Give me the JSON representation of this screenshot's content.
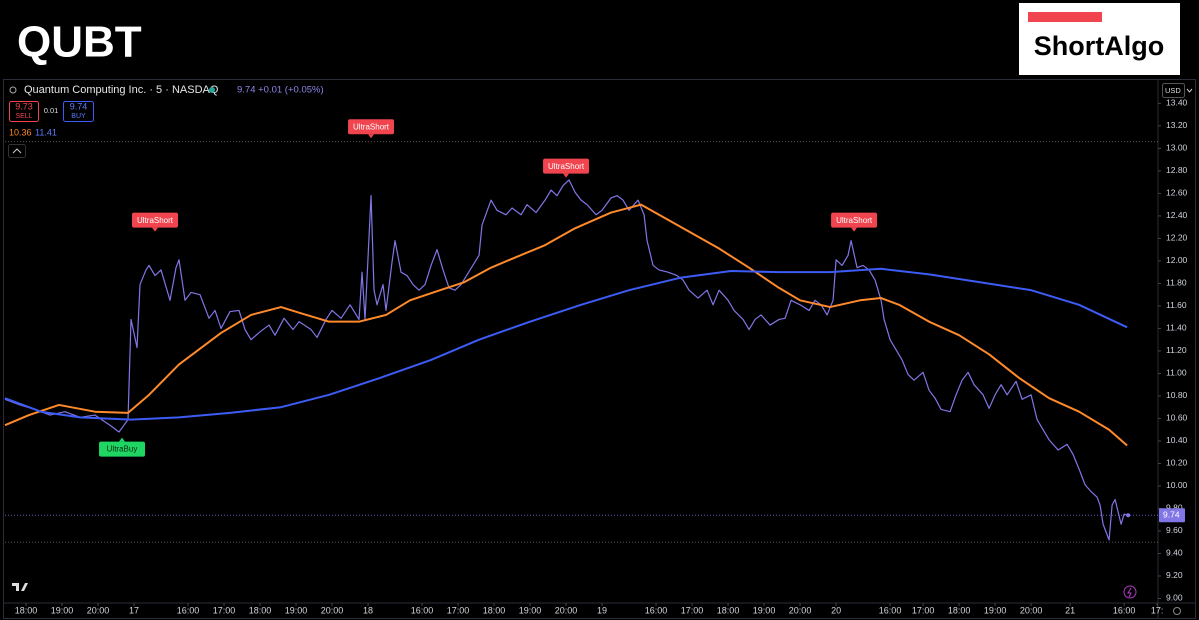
{
  "chart_data": {
    "type": "line",
    "title": "QUBT",
    "brand": "ShortAlgo",
    "symbol": "Quantum Computing Inc. · 5 · NASDAQ",
    "quote": "9.74 +0.01 (+0.05%)",
    "sell": {
      "price": 9.73,
      "label": "SELL"
    },
    "spread": 0.01,
    "buy": {
      "price": 9.74,
      "label": "BUY"
    },
    "ma_values": [
      10.36,
      11.41
    ],
    "currency": "USD",
    "last_price": 9.74,
    "price_lines": [
      13.06,
      9.5
    ],
    "xlim": [
      -7,
      377.3
    ],
    "ylim": [
      8.96,
      13.59
    ],
    "grid": false,
    "xticks": [
      {
        "value": 0,
        "label": "18:00"
      },
      {
        "value": 12,
        "label": "19:00"
      },
      {
        "value": 24,
        "label": "20:00"
      },
      {
        "value": 36,
        "label": "17"
      },
      {
        "value": 54,
        "label": "16:00"
      },
      {
        "value": 66,
        "label": "17:00"
      },
      {
        "value": 78,
        "label": "18:00"
      },
      {
        "value": 90,
        "label": "19:00"
      },
      {
        "value": 102,
        "label": "20:00"
      },
      {
        "value": 114,
        "label": "18"
      },
      {
        "value": 132,
        "label": "16:00"
      },
      {
        "value": 144,
        "label": "17:00"
      },
      {
        "value": 156,
        "label": "18:00"
      },
      {
        "value": 168,
        "label": "19:00"
      },
      {
        "value": 180,
        "label": "20:00"
      },
      {
        "value": 192,
        "label": "19"
      },
      {
        "value": 210,
        "label": "16:00"
      },
      {
        "value": 222,
        "label": "17:00"
      },
      {
        "value": 234,
        "label": "18:00"
      },
      {
        "value": 246,
        "label": "19:00"
      },
      {
        "value": 258,
        "label": "20:00"
      },
      {
        "value": 270,
        "label": "20"
      },
      {
        "value": 288,
        "label": "16:00"
      },
      {
        "value": 299,
        "label": "17:00"
      },
      {
        "value": 311,
        "label": "18:00"
      },
      {
        "value": 323,
        "label": "19:00"
      },
      {
        "value": 335,
        "label": "20:00"
      },
      {
        "value": 348,
        "label": "21"
      },
      {
        "value": 366,
        "label": "16:00"
      },
      {
        "value": 377,
        "label": "17:"
      }
    ],
    "yticks": [
      {
        "value": 9,
        "label": "9.00"
      },
      {
        "value": 9.2,
        "label": "9.20"
      },
      {
        "value": 9.4,
        "label": "9.40"
      },
      {
        "value": 9.6,
        "label": "9.60"
      },
      {
        "value": 9.8,
        "label": "9.80"
      },
      {
        "value": 10,
        "label": "10.00"
      },
      {
        "value": 10.2,
        "label": "10.20"
      },
      {
        "value": 10.4,
        "label": "10.40"
      },
      {
        "value": 10.6,
        "label": "10.60"
      },
      {
        "value": 10.8,
        "label": "10.80"
      },
      {
        "value": 11,
        "label": "11.00"
      },
      {
        "value": 11.2,
        "label": "11.20"
      },
      {
        "value": 11.4,
        "label": "11.40"
      },
      {
        "value": 11.6,
        "label": "11.60"
      },
      {
        "value": 11.8,
        "label": "11.80"
      },
      {
        "value": 12,
        "label": "12.00"
      },
      {
        "value": 12.2,
        "label": "12.20"
      },
      {
        "value": 12.4,
        "label": "12.40"
      },
      {
        "value": 12.6,
        "label": "12.60"
      },
      {
        "value": 12.8,
        "label": "12.80"
      },
      {
        "value": 13,
        "label": "13.00"
      },
      {
        "value": 13.2,
        "label": "13.20"
      },
      {
        "value": 13.4,
        "label": "13.40"
      }
    ],
    "series": [
      {
        "color": "#8176e6",
        "x": [
          -7,
          -2,
          3,
          8,
          13,
          18,
          23,
          28,
          31,
          34,
          35,
          37,
          38,
          40,
          41,
          43,
          45,
          46,
          48,
          50,
          51,
          53,
          55,
          58,
          61,
          63,
          65,
          68,
          71,
          73,
          75,
          78,
          81,
          83,
          86,
          89,
          91,
          95,
          97,
          100,
          102,
          105,
          108,
          111,
          112,
          113,
          115,
          116,
          117,
          119,
          120,
          122,
          123,
          125,
          127,
          129,
          131,
          133,
          135,
          137,
          139,
          141,
          143,
          145,
          148,
          151,
          152,
          155,
          157,
          160,
          162,
          165,
          167,
          170,
          173,
          175,
          177,
          179,
          181,
          183,
          185,
          187,
          190,
          192,
          195,
          197,
          199,
          201,
          204,
          206,
          207,
          209,
          211,
          214,
          217,
          219,
          221,
          224,
          227,
          229,
          231,
          234,
          236,
          239,
          241,
          243,
          245,
          248,
          251,
          253,
          255,
          258,
          261,
          263,
          265,
          267,
          269,
          270,
          272,
          274,
          275,
          277,
          279,
          281,
          283,
          285,
          286,
          288,
          290,
          292,
          294,
          296,
          299,
          301,
          303,
          305,
          308,
          310,
          312,
          314,
          316,
          319,
          321,
          323,
          325,
          327,
          330,
          332,
          335,
          337,
          339,
          341,
          344,
          347,
          349,
          351,
          353,
          355,
          357,
          358,
          359,
          361,
          362,
          363,
          365,
          366,
          367
        ],
        "values": [
          10.77,
          10.72,
          10.68,
          10.63,
          10.66,
          10.61,
          10.63,
          10.54,
          10.48,
          10.59,
          11.48,
          11.23,
          11.79,
          11.92,
          11.96,
          11.87,
          11.92,
          11.83,
          11.65,
          11.94,
          12.01,
          11.65,
          11.72,
          11.7,
          11.49,
          11.56,
          11.4,
          11.55,
          11.56,
          11.39,
          11.3,
          11.37,
          11.43,
          11.34,
          11.49,
          11.39,
          11.46,
          11.39,
          11.32,
          11.48,
          11.56,
          11.49,
          11.61,
          11.48,
          11.9,
          11.48,
          12.58,
          11.74,
          11.61,
          11.79,
          11.56,
          11.99,
          12.18,
          11.9,
          11.87,
          11.79,
          11.74,
          11.79,
          11.96,
          12.1,
          11.92,
          11.76,
          11.74,
          11.79,
          11.92,
          12.05,
          12.32,
          12.54,
          12.45,
          12.41,
          12.47,
          12.41,
          12.5,
          12.43,
          12.54,
          12.63,
          12.58,
          12.67,
          12.72,
          12.61,
          12.54,
          12.5,
          12.41,
          12.45,
          12.56,
          12.58,
          12.54,
          12.45,
          12.54,
          12.41,
          12.18,
          11.96,
          11.92,
          11.9,
          11.87,
          11.83,
          11.74,
          11.67,
          11.74,
          11.61,
          11.74,
          11.65,
          11.56,
          11.48,
          11.39,
          11.48,
          11.52,
          11.43,
          11.48,
          11.49,
          11.65,
          11.61,
          11.56,
          11.65,
          11.61,
          11.52,
          11.65,
          12.01,
          11.96,
          12.05,
          12.18,
          11.94,
          11.96,
          11.92,
          11.83,
          11.65,
          11.48,
          11.3,
          11.21,
          11.12,
          10.99,
          10.94,
          11.01,
          10.85,
          10.78,
          10.68,
          10.66,
          10.81,
          10.94,
          11.01,
          10.9,
          10.81,
          10.69,
          10.81,
          10.9,
          10.81,
          10.93,
          10.77,
          10.81,
          10.59,
          10.5,
          10.41,
          10.32,
          10.37,
          10.28,
          10.15,
          10.01,
          9.95,
          9.9,
          9.83,
          9.66,
          9.52,
          9.83,
          9.88,
          9.66,
          9.75,
          9.74
        ]
      },
      {
        "color": "#ff8a2b",
        "x": [
          -7,
          1,
          11,
          23,
          34,
          41,
          51,
          65,
          75,
          85,
          91,
          101,
          111,
          120,
          128,
          138,
          146,
          155,
          163,
          173,
          183,
          195,
          205,
          211,
          221,
          231,
          241,
          251,
          258,
          268,
          278,
          285,
          291,
          301,
          311,
          321,
          331,
          341,
          351,
          361,
          367
        ],
        "values": [
          10.54,
          10.63,
          10.72,
          10.66,
          10.65,
          10.81,
          11.08,
          11.36,
          11.52,
          11.59,
          11.54,
          11.46,
          11.46,
          11.52,
          11.65,
          11.74,
          11.81,
          11.94,
          12.03,
          12.14,
          12.29,
          12.43,
          12.5,
          12.41,
          12.26,
          12.11,
          11.94,
          11.76,
          11.65,
          11.59,
          11.65,
          11.67,
          11.61,
          11.46,
          11.34,
          11.17,
          10.96,
          10.78,
          10.66,
          10.5,
          10.36
        ]
      },
      {
        "color": "#3d5cf5",
        "x": [
          -7,
          5,
          18,
          35,
          51,
          68,
          85,
          101,
          118,
          135,
          151,
          168,
          185,
          201,
          218,
          235,
          251,
          268,
          285,
          301,
          318,
          335,
          351,
          367
        ],
        "values": [
          10.78,
          10.66,
          10.61,
          10.59,
          10.61,
          10.65,
          10.7,
          10.81,
          10.96,
          11.12,
          11.3,
          11.46,
          11.61,
          11.74,
          11.85,
          11.91,
          11.9,
          11.9,
          11.93,
          11.88,
          11.81,
          11.74,
          11.61,
          11.41
        ]
      }
    ],
    "signals": [
      {
        "label": "UltraBuy",
        "x": 32,
        "value": 10.43,
        "side": "buy",
        "color": "#1fd662"
      },
      {
        "label": "UltraShort",
        "x": 43,
        "value": 12.26,
        "side": "sell",
        "color": "#f0444e"
      },
      {
        "label": "UltraShort",
        "x": 115,
        "value": 13.09,
        "side": "sell",
        "color": "#f0444e"
      },
      {
        "label": "UltraShort",
        "x": 180,
        "value": 12.74,
        "side": "sell",
        "color": "#f0444e"
      },
      {
        "label": "UltraShort",
        "x": 276,
        "value": 12.26,
        "side": "sell",
        "color": "#f0444e"
      }
    ]
  }
}
